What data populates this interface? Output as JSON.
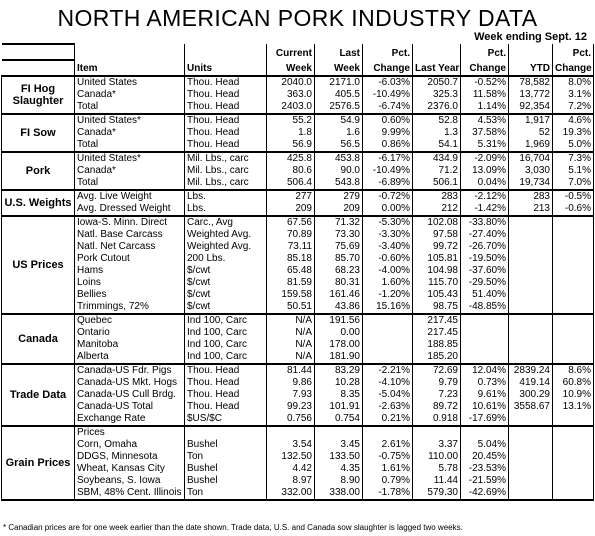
{
  "title": "NORTH AMERICAN PORK INDUSTRY DATA",
  "subtitle": "Week ending Sept. 12",
  "columns": {
    "item": "Item",
    "units": "Units",
    "current_1": "Current",
    "current_2": "Week",
    "last_1": "Last",
    "last_2": "Week",
    "pct_1": "Pct.",
    "pct_2": "Change",
    "last_year": "Last Year",
    "pct2_1": "Pct.",
    "pct2_2": "Change",
    "ytd": "YTD",
    "pct3_1": "Pct.",
    "pct3_2": "Change"
  },
  "sections": [
    {
      "label": "FI Hog Slaughter",
      "rows": [
        [
          "United States",
          "Thou. Head",
          "2040.0",
          "2171.0",
          "-6.03%",
          "2050.7",
          "-0.52%",
          "78,582",
          "8.0%"
        ],
        [
          "Canada*",
          "Thou. Head",
          "363.0",
          "405.5",
          "-10.49%",
          "325.3",
          "11.58%",
          "13,772",
          "3.1%"
        ],
        [
          "Total",
          "Thou. Head",
          "2403.0",
          "2576.5",
          "-6.74%",
          "2376.0",
          "1.14%",
          "92,354",
          "7.2%"
        ]
      ]
    },
    {
      "label": "FI Sow",
      "rows": [
        [
          "United States*",
          "Thou. Head",
          "55.2",
          "54.9",
          "0.60%",
          "52.8",
          "4.53%",
          "1,917",
          "4.6%"
        ],
        [
          "Canada*",
          "Thou. Head",
          "1.8",
          "1.6",
          "9.99%",
          "1.3",
          "37.58%",
          "52",
          "19.3%"
        ],
        [
          "Total",
          "Thou. Head",
          "56.9",
          "56.5",
          "0.86%",
          "54.1",
          "5.31%",
          "1,969",
          "5.0%"
        ]
      ]
    },
    {
      "label": "Pork",
      "rows": [
        [
          "United States*",
          "Mil. Lbs., carc",
          "425.8",
          "453.8",
          "-6.17%",
          "434.9",
          "-2.09%",
          "16,704",
          "7.3%"
        ],
        [
          "Canada*",
          "Mil. Lbs., carc",
          "80.6",
          "90.0",
          "-10.49%",
          "71.2",
          "13.09%",
          "3,030",
          "5.1%"
        ],
        [
          "Total",
          "Mil. Lbs., carc",
          "506.4",
          "543.8",
          "-6.89%",
          "506.1",
          "0.04%",
          "19,734",
          "7.0%"
        ]
      ]
    },
    {
      "label": "U.S. Weights",
      "rows": [
        [
          "Avg. Live Weight",
          "Lbs.",
          "277",
          "279",
          "-0.72%",
          "283",
          "-2.12%",
          "283",
          "-0.5%"
        ],
        [
          "Avg. Dressed Weight",
          "Lbs.",
          "209",
          "209",
          "0.00%",
          "212",
          "-1.42%",
          "213",
          "-0.6%"
        ]
      ]
    },
    {
      "label": "US Prices",
      "rows": [
        [
          "Iowa-S. Minn. Direct",
          "Carc., Avg",
          "67.56",
          "71.32",
          "-5.30%",
          "102.08",
          "-33.80%",
          "",
          ""
        ],
        [
          "Natl. Base Carcass",
          "Weighted Avg.",
          "70.89",
          "73.30",
          "-3.30%",
          "97.58",
          "-27.40%",
          "",
          ""
        ],
        [
          "Natl. Net Carcass",
          "Weighted Avg.",
          "73.11",
          "75.69",
          "-3.40%",
          "99.72",
          "-26.70%",
          "",
          ""
        ],
        [
          "Pork Cutout",
          "200 Lbs.",
          "85.18",
          "85.70",
          "-0.60%",
          "105.81",
          "-19.50%",
          "",
          ""
        ],
        [
          "Hams",
          "$/cwt",
          "65.48",
          "68.23",
          "-4.00%",
          "104.98",
          "-37.60%",
          "",
          ""
        ],
        [
          "Loins",
          "$/cwt",
          "81.59",
          "80.31",
          "1.60%",
          "115.70",
          "-29.50%",
          "",
          ""
        ],
        [
          "Bellies",
          "$/cwt",
          "159.58",
          "161.46",
          "-1.20%",
          "105.43",
          "51.40%",
          "",
          ""
        ],
        [
          "Trimmings, 72%",
          "$/cwt",
          "50.51",
          "43.86",
          "15.16%",
          "98.75",
          "-48.85%",
          "",
          ""
        ]
      ]
    },
    {
      "label": "Canada",
      "rows": [
        [
          "Quebec",
          "Ind 100, Carc",
          "N/A",
          "191.56",
          "",
          "217.45",
          "",
          "",
          ""
        ],
        [
          "Ontario",
          "Ind 100, Carc",
          "N/A",
          "0.00",
          "",
          "217.45",
          "",
          "",
          ""
        ],
        [
          "Manitoba",
          "Ind 100, Carc",
          "N/A",
          "178.00",
          "",
          "188.85",
          "",
          "",
          ""
        ],
        [
          "Alberta",
          "Ind 100, Carc",
          "N/A",
          "181.90",
          "",
          "185.20",
          "",
          "",
          ""
        ]
      ]
    },
    {
      "label": "Trade Data",
      "rows": [
        [
          "Canada-US Fdr. Pigs",
          "Thou. Head",
          "81.44",
          "83.29",
          "-2.21%",
          "72.69",
          "12.04%",
          "2839.24",
          "8.6%"
        ],
        [
          "Canada-US Mkt. Hogs",
          "Thou. Head",
          "9.86",
          "10.28",
          "-4.10%",
          "9.79",
          "0.73%",
          "419.14",
          "60.8%"
        ],
        [
          "Canada-US Cull Brdg.",
          "Thou. Head",
          "7.93",
          "8.35",
          "-5.04%",
          "7.23",
          "9.61%",
          "300.29",
          "10.9%"
        ],
        [
          "Canada-US Total",
          "Thou. Head",
          "99.23",
          "101.91",
          "-2.63%",
          "89.72",
          "10.61%",
          "3558.67",
          "13.1%"
        ],
        [
          "Exchange Rate",
          "$US/$C",
          "0.756",
          "0.754",
          "0.21%",
          "0.918",
          "-17.69%",
          "",
          ""
        ]
      ]
    },
    {
      "label": "Grain Prices",
      "rows": [
        [
          "Prices",
          "",
          "",
          "",
          "",
          "",
          "",
          "",
          ""
        ],
        [
          "Corn, Omaha",
          "Bushel",
          "3.54",
          "3.45",
          "2.61%",
          "3.37",
          "5.04%",
          "",
          ""
        ],
        [
          "DDGS, Minnesota",
          "Ton",
          "132.50",
          "133.50",
          "-0.75%",
          "110.00",
          "20.45%",
          "",
          ""
        ],
        [
          "Wheat, Kansas City",
          "Bushel",
          "4.42",
          "4.35",
          "1.61%",
          "5.78",
          "-23.53%",
          "",
          ""
        ],
        [
          "Soybeans, S. Iowa",
          "Bushel",
          "8.97",
          "8.90",
          "0.79%",
          "11.44",
          "-21.59%",
          "",
          ""
        ],
        [
          "SBM, 48% Cent. Illinois",
          "Ton",
          "332.00",
          "338.00",
          "-1.78%",
          "579.30",
          "-42.69%",
          "",
          ""
        ]
      ]
    }
  ],
  "footnote": "* Canadian prices are for one week earlier than the date shown.  Trade data, U.S. and Canada sow slaughter is lagged two weeks."
}
